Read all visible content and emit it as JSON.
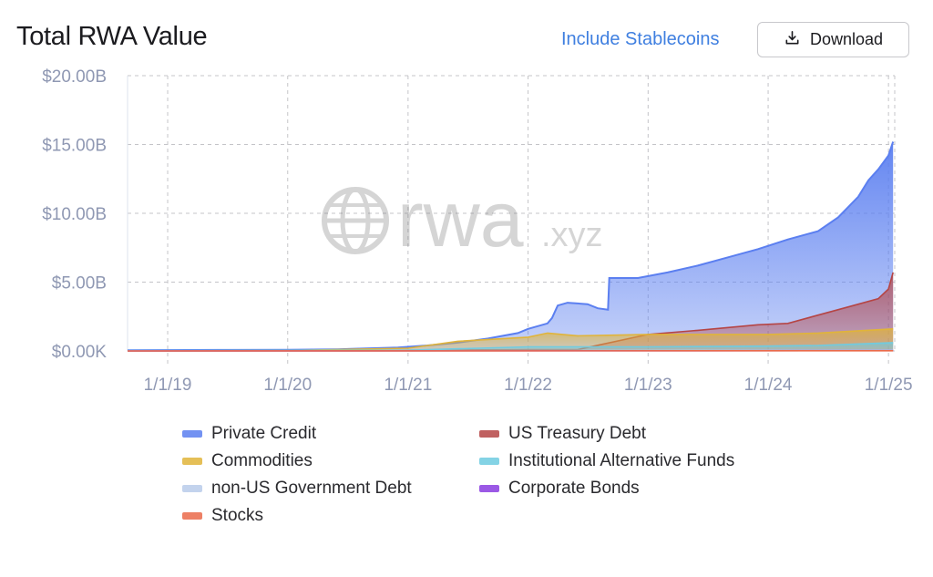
{
  "header": {
    "title": "Total RWA Value",
    "toggle_label": "Include Stablecoins",
    "download_label": "Download"
  },
  "watermark": {
    "brand": "rwa",
    "suffix": ".xyz"
  },
  "colors": {
    "Private Credit": "#5b7ff0",
    "US Treasury Debt": "#b54545",
    "Commodities": "#e0b43a",
    "Institutional Alternative Funds": "#6fcbe0",
    "non-US Government Debt": "#b9cbea",
    "Corporate Bonds": "#8a3ce0",
    "Stocks": "#ea6a4a"
  },
  "legend": [
    {
      "name": "Private Credit"
    },
    {
      "name": "US Treasury Debt"
    },
    {
      "name": "Commodities"
    },
    {
      "name": "Institutional Alternative Funds"
    },
    {
      "name": "non-US Government Debt"
    },
    {
      "name": "Corporate Bonds"
    },
    {
      "name": "Stocks"
    }
  ],
  "chart_data": {
    "type": "area",
    "stacked": true,
    "title": "Total RWA Value",
    "ylim": [
      0,
      20
    ],
    "yunit": "$B",
    "yticks": [
      "$0.00K",
      "$5.00B",
      "$10.00B",
      "$15.00B",
      "$20.00B"
    ],
    "xticks": [
      "1/1/19",
      "1/1/20",
      "1/1/21",
      "1/1/22",
      "1/1/23",
      "1/1/24",
      "1/1/25"
    ],
    "xlim": [
      "2018-09-01",
      "2025-01-20"
    ],
    "grid": true,
    "legend_position": "bottom",
    "series": [
      {
        "name": "Private Credit",
        "type": "total",
        "points": [
          [
            "2018-09-01",
            0.05
          ],
          [
            "2019-06-01",
            0.07
          ],
          [
            "2020-01-01",
            0.08
          ],
          [
            "2020-06-01",
            0.12
          ],
          [
            "2020-12-01",
            0.25
          ],
          [
            "2021-03-01",
            0.4
          ],
          [
            "2021-06-01",
            0.6
          ],
          [
            "2021-09-01",
            0.9
          ],
          [
            "2021-12-01",
            1.3
          ],
          [
            "2022-01-01",
            1.6
          ],
          [
            "2022-03-01",
            2.0
          ],
          [
            "2022-03-15",
            2.4
          ],
          [
            "2022-04-01",
            3.3
          ],
          [
            "2022-05-01",
            3.5
          ],
          [
            "2022-07-01",
            3.4
          ],
          [
            "2022-08-01",
            3.1
          ],
          [
            "2022-09-01",
            3.0
          ],
          [
            "2022-09-05",
            5.3
          ],
          [
            "2022-12-01",
            5.3
          ],
          [
            "2023-03-01",
            5.7
          ],
          [
            "2023-06-01",
            6.2
          ],
          [
            "2023-09-01",
            6.8
          ],
          [
            "2023-12-01",
            7.4
          ],
          [
            "2024-03-01",
            8.1
          ],
          [
            "2024-06-01",
            8.7
          ],
          [
            "2024-08-01",
            9.7
          ],
          [
            "2024-10-01",
            11.2
          ],
          [
            "2024-11-01",
            12.4
          ],
          [
            "2024-12-01",
            13.2
          ],
          [
            "2025-01-01",
            14.2
          ],
          [
            "2025-01-15",
            15.2
          ]
        ]
      },
      {
        "name": "US Treasury Debt",
        "type": "line",
        "points": [
          [
            "2018-09-01",
            0.0
          ],
          [
            "2020-01-01",
            0.02
          ],
          [
            "2021-01-01",
            0.05
          ],
          [
            "2022-01-01",
            0.1
          ],
          [
            "2022-06-01",
            0.1
          ],
          [
            "2023-01-01",
            1.2
          ],
          [
            "2023-06-01",
            1.5
          ],
          [
            "2023-12-01",
            1.9
          ],
          [
            "2024-03-01",
            2.0
          ],
          [
            "2024-06-01",
            2.6
          ],
          [
            "2024-09-01",
            3.2
          ],
          [
            "2024-12-01",
            3.8
          ],
          [
            "2025-01-01",
            4.5
          ],
          [
            "2025-01-15",
            5.7
          ]
        ]
      },
      {
        "name": "Commodities",
        "type": "line",
        "points": [
          [
            "2018-09-01",
            0.0
          ],
          [
            "2020-01-01",
            0.03
          ],
          [
            "2021-01-01",
            0.2
          ],
          [
            "2021-06-01",
            0.7
          ],
          [
            "2022-01-01",
            1.0
          ],
          [
            "2022-03-01",
            1.3
          ],
          [
            "2022-06-01",
            1.1
          ],
          [
            "2023-01-01",
            1.2
          ],
          [
            "2023-06-01",
            1.2
          ],
          [
            "2024-01-01",
            1.2
          ],
          [
            "2024-06-01",
            1.3
          ],
          [
            "2025-01-15",
            1.6
          ]
        ]
      },
      {
        "name": "Institutional Alternative Funds",
        "type": "line",
        "points": [
          [
            "2018-09-01",
            0.02
          ],
          [
            "2021-01-01",
            0.05
          ],
          [
            "2022-01-01",
            0.3
          ],
          [
            "2023-01-01",
            0.3
          ],
          [
            "2024-01-01",
            0.35
          ],
          [
            "2024-06-01",
            0.4
          ],
          [
            "2025-01-15",
            0.6
          ]
        ]
      },
      {
        "name": "non-US Government Debt",
        "type": "line",
        "points": [
          [
            "2018-09-01",
            0.0
          ],
          [
            "2025-01-15",
            0.05
          ]
        ]
      },
      {
        "name": "Corporate Bonds",
        "type": "line",
        "points": [
          [
            "2018-09-01",
            0.0
          ],
          [
            "2025-01-15",
            0.02
          ]
        ]
      },
      {
        "name": "Stocks",
        "type": "line",
        "points": [
          [
            "2018-09-01",
            0.0
          ],
          [
            "2025-01-15",
            0.01
          ]
        ]
      }
    ]
  }
}
